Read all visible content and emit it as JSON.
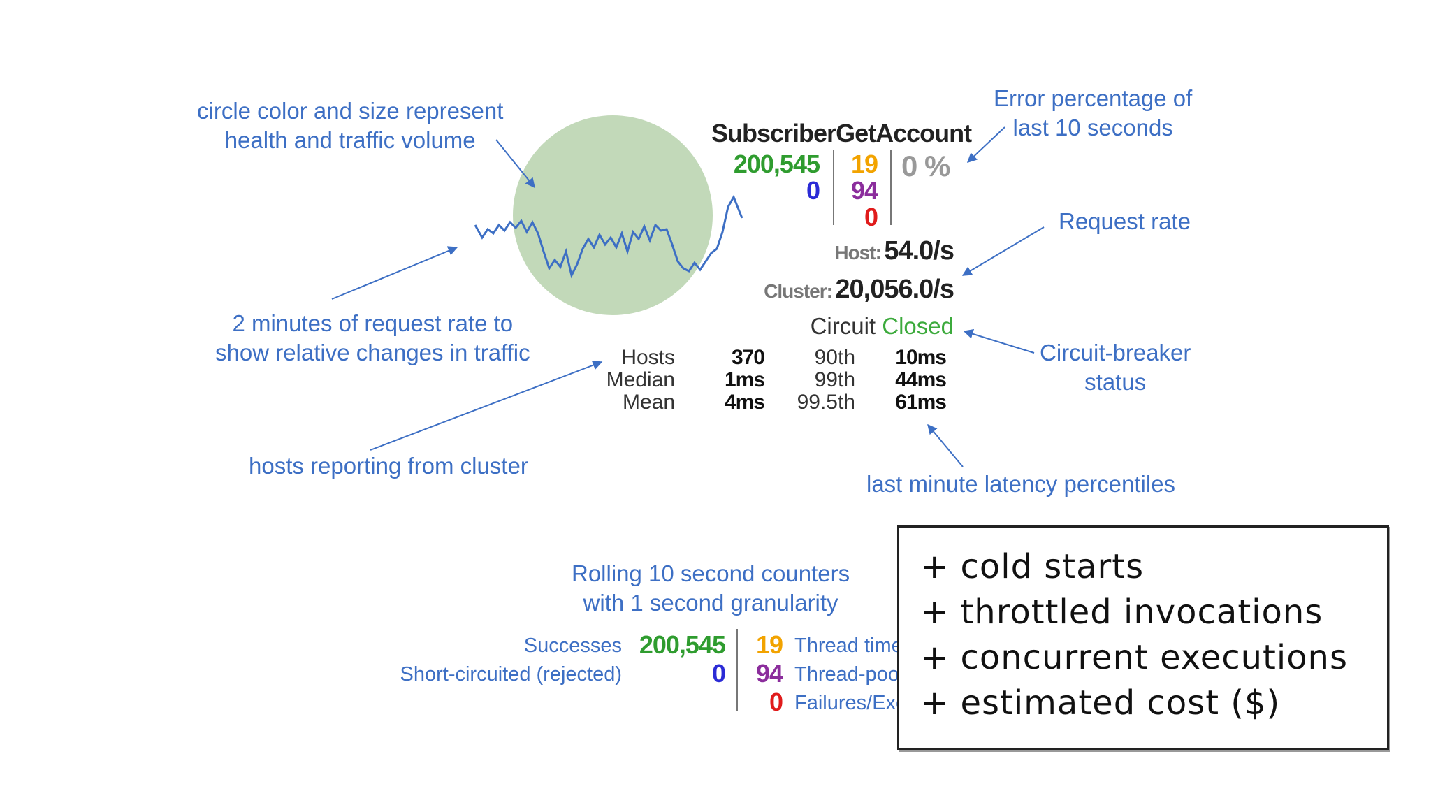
{
  "annotations": {
    "circle_line1": "circle color and size represent",
    "circle_line2": "health and traffic volume",
    "error_line1": "Error percentage of",
    "error_line2": "last 10 seconds",
    "request_rate": "Request rate",
    "two_min_line1": "2 minutes of request rate to",
    "two_min_line2": "show relative changes in traffic",
    "breaker_line1": "Circuit-breaker",
    "breaker_line2": "status",
    "hosts_reporting": "hosts reporting from cluster",
    "latency": "last minute latency percentiles",
    "rolling_line1": "Rolling 10 second counters",
    "rolling_line2": "with 1 second granularity"
  },
  "dashboard": {
    "name": "SubscriberGetAccount",
    "successes": "200,545",
    "short_circuited": "0",
    "timeouts": "19",
    "rejected": "94",
    "failures": "0",
    "error_pct": "0 %",
    "host_label": "Host:",
    "host_rate": "54.0/s",
    "cluster_label": "Cluster:",
    "cluster_rate": "20,056.0/s",
    "circuit_label": "Circuit",
    "circuit_state": "Closed",
    "latency": {
      "hosts_label": "Hosts",
      "hosts_value": "370",
      "median_label": "Median",
      "median_value": "1ms",
      "mean_label": "Mean",
      "mean_value": "4ms",
      "p90_label": "90th",
      "p90_value": "10ms",
      "p99_label": "99th",
      "p99_value": "44ms",
      "p995_label": "99.5th",
      "p995_value": "61ms"
    }
  },
  "counters": {
    "successes_label": "Successes",
    "successes_value": "200,545",
    "short_label": "Short-circuited (rejected)",
    "short_value": "0",
    "timeout_value": "19",
    "timeout_label": "Thread time",
    "pool_value": "94",
    "pool_label": "Thread-poo",
    "failure_value": "0",
    "failure_label": "Failures/Exc"
  },
  "overlay": {
    "items": [
      "+ cold starts",
      "+ throttled invocations",
      "+ concurrent executions",
      "+ estimated cost ($)"
    ]
  },
  "colors": {
    "annotation": "#3d6fc4",
    "success": "#2f9c2f",
    "short_circuit": "#2b2bd6",
    "timeout": "#f2a300",
    "rejected": "#8b2d9c",
    "failure": "#e01b1b",
    "closed": "#3caa3c",
    "circle": "#b7d2ad",
    "sparkline": "#3d6fc4"
  }
}
